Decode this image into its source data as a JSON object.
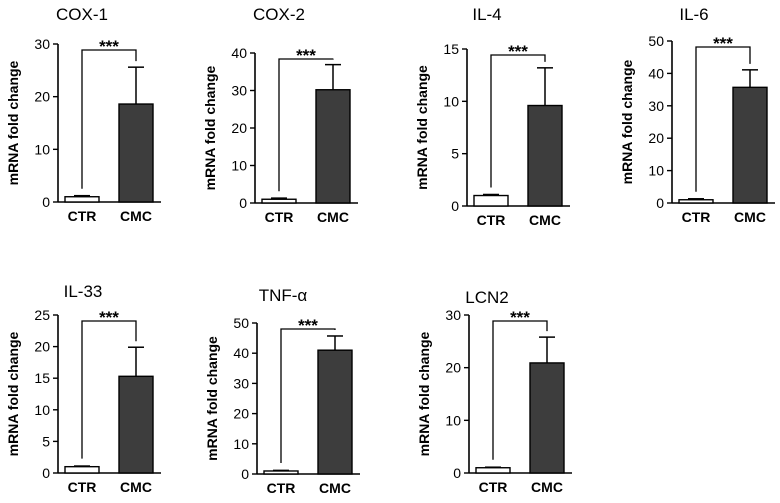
{
  "chart_data": [
    {
      "type": "bar",
      "title": "COX-1",
      "ylabel": "mRNA fold change",
      "categories": [
        "CTR",
        "CMC"
      ],
      "values": [
        1.0,
        18.6
      ],
      "errors": [
        0.2,
        7.0
      ],
      "significance": "***",
      "ylim": [
        0,
        30
      ],
      "yticks": [
        0,
        10,
        20,
        30
      ]
    },
    {
      "type": "bar",
      "title": "COX-2",
      "ylabel": "mRNA fold change",
      "categories": [
        "CTR",
        "CMC"
      ],
      "values": [
        1.0,
        30.2
      ],
      "errors": [
        0.3,
        6.7
      ],
      "significance": "***",
      "ylim": [
        0,
        40
      ],
      "yticks": [
        0,
        10,
        20,
        30,
        40
      ]
    },
    {
      "type": "bar",
      "title": "IL-4",
      "ylabel": "mRNA fold change",
      "categories": [
        "CTR",
        "CMC"
      ],
      "values": [
        1.0,
        9.6
      ],
      "errors": [
        0.1,
        3.6
      ],
      "significance": "***",
      "ylim": [
        0,
        15
      ],
      "yticks": [
        0,
        5,
        10,
        15
      ]
    },
    {
      "type": "bar",
      "title": "IL-6",
      "ylabel": "mRNA fold change",
      "categories": [
        "CTR",
        "CMC"
      ],
      "values": [
        1.0,
        35.7
      ],
      "errors": [
        0.3,
        5.4
      ],
      "significance": "***",
      "ylim": [
        0,
        50
      ],
      "yticks": [
        0,
        10,
        20,
        30,
        40,
        50
      ]
    },
    {
      "type": "bar",
      "title": "IL-33",
      "ylabel": "mRNA fold change",
      "categories": [
        "CTR",
        "CMC"
      ],
      "values": [
        1.0,
        15.3
      ],
      "errors": [
        0.1,
        4.6
      ],
      "significance": "***",
      "ylim": [
        0,
        25
      ],
      "yticks": [
        0,
        5,
        10,
        15,
        20,
        25
      ]
    },
    {
      "type": "bar",
      "title": "TNF-α",
      "ylabel": "mRNA fold change",
      "categories": [
        "CTR",
        "CMC"
      ],
      "values": [
        1.0,
        41.0
      ],
      "errors": [
        0.2,
        4.7
      ],
      "significance": "***",
      "ylim": [
        0,
        50
      ],
      "yticks": [
        0,
        10,
        20,
        30,
        40,
        50
      ]
    },
    {
      "type": "bar",
      "title": "LCN2",
      "ylabel": "mRNA fold change",
      "categories": [
        "CTR",
        "CMC"
      ],
      "values": [
        1.0,
        20.9
      ],
      "errors": [
        0.1,
        4.9
      ],
      "significance": "***",
      "ylim": [
        0,
        30
      ],
      "yticks": [
        0,
        10,
        20,
        30
      ]
    }
  ],
  "colors": {
    "ctr_fill": "#ffffff",
    "cmc_fill": "#3d3d3d",
    "stroke": "#000000"
  }
}
